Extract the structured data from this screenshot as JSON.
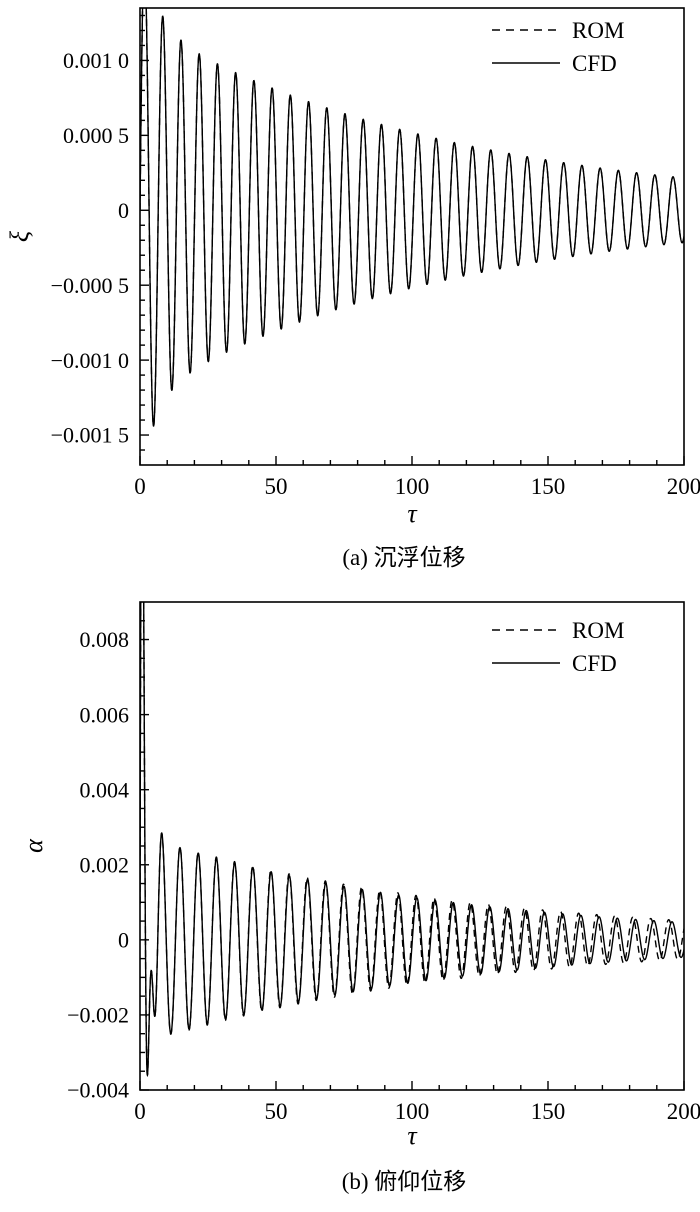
{
  "page": {
    "background": "#ffffff",
    "stroke_color": "#000000"
  },
  "chart_data": [
    {
      "id": "a",
      "type": "line",
      "caption": "(a) 沉浮位移",
      "xlabel": "τ",
      "ylabel": "ξ",
      "xlim": [
        0,
        200
      ],
      "ylim": [
        -0.0017,
        0.00135
      ],
      "grid": false,
      "xticks": {
        "major": [
          0,
          50,
          100,
          150,
          200
        ],
        "labels": [
          "0",
          "50",
          "100",
          "150",
          "200"
        ],
        "major_step": 50,
        "minor_step": 10
      },
      "yticks": {
        "major": [
          0.001,
          0.0005,
          0,
          -0.0005,
          -0.001,
          -0.0015
        ],
        "labels": [
          "0.001 0",
          "0.000 5",
          "0",
          "−0.000 5",
          "−0.001 0",
          "−0.001 5"
        ],
        "major_step": 0.0005,
        "minor_step": 0.0001
      },
      "legend": {
        "position": "top-right",
        "entries": [
          {
            "label": "ROM",
            "style": "dashed"
          },
          {
            "label": "CFD",
            "style": "solid"
          }
        ]
      },
      "series": [
        {
          "name": "CFD",
          "style": "solid",
          "model": "sum-of-damped-sinusoids",
          "x_range": [
            0,
            200
          ],
          "components": [
            {
              "amplitude": 0.00125,
              "decay": 0.0088,
              "period": 6.7,
              "phase": 0
            },
            {
              "amplitude": 0.0006,
              "decay": 0.18,
              "period": 6.7,
              "phase": 0
            }
          ]
        },
        {
          "name": "ROM",
          "style": "dashed",
          "model": "sum-of-damped-sinusoids",
          "x_range": [
            0,
            200
          ],
          "components": [
            {
              "amplitude": 0.00125,
              "decay": 0.0088,
              "period": 6.7,
              "phase": 0
            },
            {
              "amplitude": 0.0006,
              "decay": 0.18,
              "period": 6.7,
              "phase": 0
            }
          ]
        }
      ]
    },
    {
      "id": "b",
      "type": "line",
      "caption": "(b) 俯仰位移",
      "xlabel": "τ",
      "ylabel": "α",
      "xlim": [
        0,
        200
      ],
      "ylim": [
        -0.004,
        0.009
      ],
      "grid": false,
      "xticks": {
        "major": [
          0,
          50,
          100,
          150,
          200
        ],
        "labels": [
          "0",
          "50",
          "100",
          "150",
          "200"
        ],
        "major_step": 50,
        "minor_step": 10
      },
      "yticks": {
        "major": [
          0.008,
          0.006,
          0.004,
          0.002,
          0,
          -0.002,
          -0.004
        ],
        "labels": [
          "0.008",
          "0.006",
          "0.004",
          "0.002",
          "0",
          "−0.002",
          "−0.004"
        ],
        "major_step": 0.002,
        "minor_step": 0.0005
      },
      "legend": {
        "position": "top-right",
        "entries": [
          {
            "label": "ROM",
            "style": "dashed"
          },
          {
            "label": "CFD",
            "style": "solid"
          }
        ]
      },
      "series": [
        {
          "name": "CFD",
          "style": "solid",
          "model": "sum-of-damped-sinusoids",
          "x_range": [
            0,
            200
          ],
          "components": [
            {
              "amplitude": 0.0028,
              "decay": 0.009,
              "period": 6.7,
              "phase": 0.35
            },
            {
              "amplitude": 0.019,
              "decay": 0.55,
              "period": 3.6,
              "phase": 0
            }
          ]
        },
        {
          "name": "ROM",
          "style": "dashed",
          "model": "sum-of-damped-sinusoids",
          "x_range": [
            0,
            200
          ],
          "components": [
            {
              "amplitude": 0.0028,
              "decay": 0.0085,
              "period": 6.7,
              "phase": 0.35,
              "chirp": 3e-05
            },
            {
              "amplitude": 0.019,
              "decay": 0.55,
              "period": 3.6,
              "phase": 0
            }
          ]
        }
      ]
    }
  ]
}
